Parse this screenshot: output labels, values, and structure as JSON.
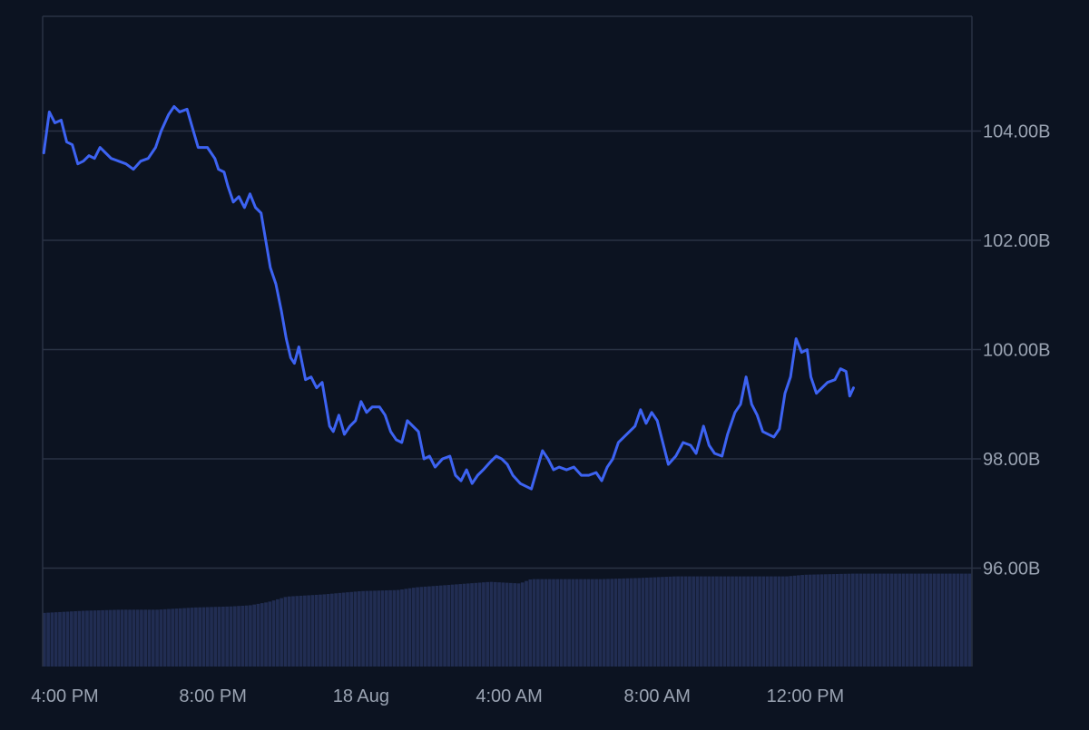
{
  "chart_data": {
    "type": "line",
    "title": "",
    "xlabel": "",
    "ylabel": "",
    "ylim": [
      94.2,
      106.1
    ],
    "x_range_hours": [
      15.4,
      40.5
    ],
    "grid": "horizontal",
    "y_axis_side": "right",
    "yticks": [
      {
        "value": 104,
        "label": "104.00B"
      },
      {
        "value": 102,
        "label": "102.00B"
      },
      {
        "value": 100,
        "label": "100.00B"
      },
      {
        "value": 98,
        "label": "98.00B"
      },
      {
        "value": 96,
        "label": "96.00B"
      }
    ],
    "xticks": [
      {
        "value": 16,
        "label": "4:00 PM"
      },
      {
        "value": 20,
        "label": "8:00 PM"
      },
      {
        "value": 24,
        "label": "18 Aug"
      },
      {
        "value": 28,
        "label": "4:00 AM"
      },
      {
        "value": 32,
        "label": "8:00 AM"
      },
      {
        "value": 36,
        "label": "12:00 PM"
      }
    ],
    "series": [
      {
        "type": "line",
        "color": "#3d63f2",
        "points": [
          [
            15.43,
            103.6
          ],
          [
            15.58,
            104.35
          ],
          [
            15.73,
            104.15
          ],
          [
            15.9,
            104.2
          ],
          [
            16.05,
            103.8
          ],
          [
            16.2,
            103.75
          ],
          [
            16.35,
            103.4
          ],
          [
            16.5,
            103.45
          ],
          [
            16.65,
            103.55
          ],
          [
            16.8,
            103.5
          ],
          [
            16.95,
            103.7
          ],
          [
            17.1,
            103.6
          ],
          [
            17.25,
            103.5
          ],
          [
            17.45,
            103.45
          ],
          [
            17.65,
            103.4
          ],
          [
            17.85,
            103.3
          ],
          [
            18.05,
            103.45
          ],
          [
            18.25,
            103.5
          ],
          [
            18.45,
            103.7
          ],
          [
            18.6,
            104.0
          ],
          [
            18.8,
            104.3
          ],
          [
            18.95,
            104.45
          ],
          [
            19.1,
            104.35
          ],
          [
            19.3,
            104.4
          ],
          [
            19.45,
            104.05
          ],
          [
            19.6,
            103.7
          ],
          [
            19.85,
            103.7
          ],
          [
            20.05,
            103.5
          ],
          [
            20.15,
            103.3
          ],
          [
            20.3,
            103.25
          ],
          [
            20.4,
            103.0
          ],
          [
            20.55,
            102.7
          ],
          [
            20.7,
            102.8
          ],
          [
            20.85,
            102.6
          ],
          [
            21.0,
            102.85
          ],
          [
            21.15,
            102.6
          ],
          [
            21.3,
            102.5
          ],
          [
            21.4,
            102.1
          ],
          [
            21.55,
            101.5
          ],
          [
            21.7,
            101.2
          ],
          [
            21.85,
            100.7
          ],
          [
            21.98,
            100.2
          ],
          [
            22.1,
            99.85
          ],
          [
            22.2,
            99.75
          ],
          [
            22.32,
            100.05
          ],
          [
            22.5,
            99.45
          ],
          [
            22.65,
            99.5
          ],
          [
            22.8,
            99.3
          ],
          [
            22.95,
            99.4
          ],
          [
            23.05,
            99.0
          ],
          [
            23.15,
            98.6
          ],
          [
            23.25,
            98.5
          ],
          [
            23.4,
            98.8
          ],
          [
            23.55,
            98.45
          ],
          [
            23.7,
            98.6
          ],
          [
            23.85,
            98.7
          ],
          [
            24.0,
            99.05
          ],
          [
            24.15,
            98.85
          ],
          [
            24.3,
            98.95
          ],
          [
            24.5,
            98.95
          ],
          [
            24.65,
            98.8
          ],
          [
            24.8,
            98.5
          ],
          [
            24.95,
            98.35
          ],
          [
            25.1,
            98.3
          ],
          [
            25.25,
            98.7
          ],
          [
            25.4,
            98.6
          ],
          [
            25.55,
            98.5
          ],
          [
            25.7,
            98.0
          ],
          [
            25.85,
            98.05
          ],
          [
            26.0,
            97.85
          ],
          [
            26.2,
            98.0
          ],
          [
            26.4,
            98.05
          ],
          [
            26.55,
            97.7
          ],
          [
            26.7,
            97.6
          ],
          [
            26.85,
            97.8
          ],
          [
            27.0,
            97.55
          ],
          [
            27.15,
            97.7
          ],
          [
            27.3,
            97.8
          ],
          [
            27.5,
            97.95
          ],
          [
            27.65,
            98.05
          ],
          [
            27.8,
            98.0
          ],
          [
            27.95,
            97.9
          ],
          [
            28.1,
            97.7
          ],
          [
            28.3,
            97.55
          ],
          [
            28.45,
            97.5
          ],
          [
            28.6,
            97.45
          ],
          [
            28.75,
            97.8
          ],
          [
            28.9,
            98.15
          ],
          [
            29.05,
            98.0
          ],
          [
            29.2,
            97.8
          ],
          [
            29.35,
            97.85
          ],
          [
            29.55,
            97.8
          ],
          [
            29.75,
            97.85
          ],
          [
            29.95,
            97.7
          ],
          [
            30.15,
            97.7
          ],
          [
            30.35,
            97.75
          ],
          [
            30.5,
            97.6
          ],
          [
            30.65,
            97.85
          ],
          [
            30.8,
            98.0
          ],
          [
            30.95,
            98.3
          ],
          [
            31.1,
            98.4
          ],
          [
            31.25,
            98.5
          ],
          [
            31.4,
            98.6
          ],
          [
            31.55,
            98.9
          ],
          [
            31.7,
            98.65
          ],
          [
            31.85,
            98.85
          ],
          [
            32.0,
            98.7
          ],
          [
            32.15,
            98.3
          ],
          [
            32.3,
            97.9
          ],
          [
            32.5,
            98.05
          ],
          [
            32.7,
            98.3
          ],
          [
            32.9,
            98.25
          ],
          [
            33.05,
            98.1
          ],
          [
            33.25,
            98.6
          ],
          [
            33.4,
            98.25
          ],
          [
            33.55,
            98.1
          ],
          [
            33.75,
            98.05
          ],
          [
            33.9,
            98.45
          ],
          [
            34.1,
            98.85
          ],
          [
            34.25,
            99.0
          ],
          [
            34.4,
            99.5
          ],
          [
            34.55,
            99.0
          ],
          [
            34.7,
            98.8
          ],
          [
            34.85,
            98.5
          ],
          [
            35.0,
            98.45
          ],
          [
            35.15,
            98.4
          ],
          [
            35.3,
            98.55
          ],
          [
            35.45,
            99.2
          ],
          [
            35.6,
            99.5
          ],
          [
            35.75,
            100.2
          ],
          [
            35.9,
            99.95
          ],
          [
            36.05,
            100.0
          ],
          [
            36.15,
            99.5
          ],
          [
            36.3,
            99.2
          ],
          [
            36.45,
            99.3
          ],
          [
            36.6,
            99.4
          ],
          [
            36.8,
            99.45
          ],
          [
            36.95,
            99.65
          ],
          [
            37.1,
            99.6
          ],
          [
            37.2,
            99.15
          ],
          [
            37.3,
            99.3
          ]
        ]
      },
      {
        "type": "bar",
        "color": "#212d52",
        "name": "",
        "step": 0.105,
        "levels": [
          [
            15.4,
            95.18
          ],
          [
            16.5,
            95.22
          ],
          [
            17.5,
            95.24
          ],
          [
            18.5,
            95.24
          ],
          [
            19.5,
            95.28
          ],
          [
            20.5,
            95.3
          ],
          [
            21.0,
            95.32
          ],
          [
            21.5,
            95.38
          ],
          [
            22.0,
            95.48
          ],
          [
            23.0,
            95.52
          ],
          [
            24.0,
            95.58
          ],
          [
            25.0,
            95.6
          ],
          [
            25.5,
            95.65
          ],
          [
            26.5,
            95.7
          ],
          [
            27.5,
            95.75
          ],
          [
            28.3,
            95.72
          ],
          [
            28.6,
            95.8
          ],
          [
            29.5,
            95.8
          ],
          [
            30.5,
            95.8
          ],
          [
            31.5,
            95.82
          ],
          [
            32.5,
            95.85
          ],
          [
            33.5,
            95.85
          ],
          [
            34.5,
            95.85
          ],
          [
            35.5,
            95.85
          ],
          [
            36.0,
            95.88
          ],
          [
            37.3,
            95.9
          ]
        ]
      }
    ]
  }
}
